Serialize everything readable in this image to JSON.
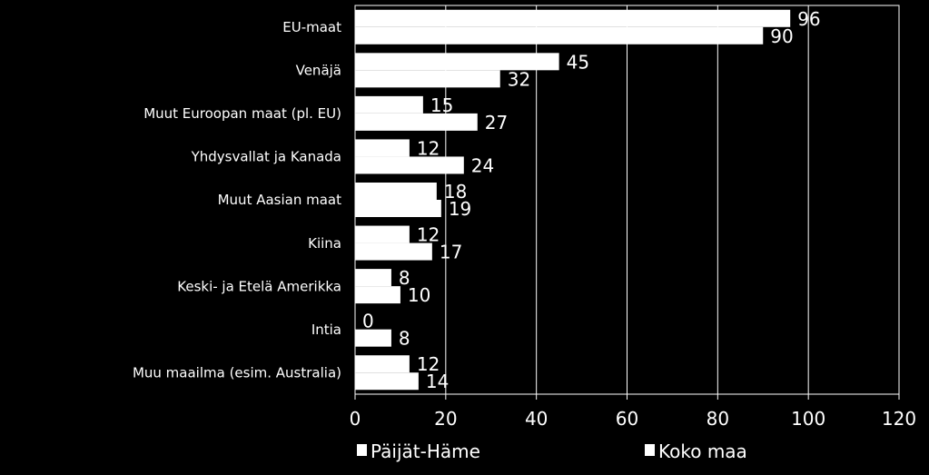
{
  "chart_data": {
    "type": "bar",
    "orientation": "horizontal",
    "categories": [
      "EU-maat",
      "Venäjä",
      "Muut Euroopan maat (pl. EU)",
      "Yhdysvallat ja Kanada",
      "Muut Aasian maat",
      "Kiina",
      "Keski- ja Etelä Amerikka",
      "Intia",
      "Muu maailma (esim. Australia)"
    ],
    "series": [
      {
        "name": "Päijät-Häme",
        "values": [
          96,
          45,
          15,
          12,
          18,
          12,
          8,
          0,
          12
        ]
      },
      {
        "name": "Koko maa",
        "values": [
          90,
          32,
          27,
          24,
          19,
          17,
          10,
          8,
          14
        ]
      }
    ],
    "xlim": [
      0,
      120
    ],
    "xticks": [
      "0",
      "20",
      "40",
      "60",
      "80",
      "100",
      "120"
    ],
    "grid": true,
    "legend_position": "bottom",
    "colors": {
      "background": "#000000",
      "bar": "#ffffff",
      "text": "#ffffff",
      "grid": "#ffffff"
    }
  }
}
